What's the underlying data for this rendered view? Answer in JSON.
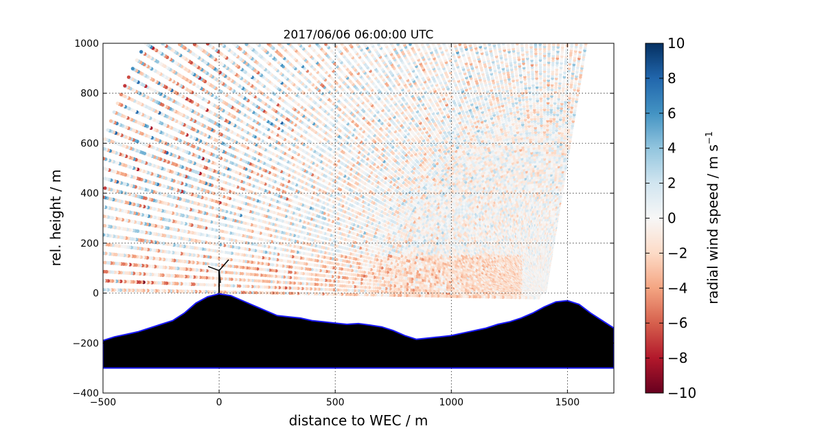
{
  "chart_data": {
    "type": "scatter",
    "title": "2017/06/06 06:00:00 UTC",
    "xlabel": "distance to WEC / m",
    "ylabel": "rel. height / m",
    "xlim": [
      -500,
      1700
    ],
    "ylim": [
      -400,
      1000
    ],
    "x_ticks": [
      -500,
      0,
      500,
      1000,
      1500
    ],
    "y_ticks": [
      -400,
      -200,
      0,
      200,
      400,
      600,
      800,
      1000
    ],
    "x_tick_labels": [
      "−500",
      "0",
      "500",
      "1000",
      "1500"
    ],
    "y_tick_labels": [
      "−400",
      "−200",
      "0",
      "200",
      "400",
      "600",
      "800",
      "1000"
    ],
    "grid": true,
    "colorbar": {
      "label": "radial wind speed / m s",
      "label_superscript": "−1",
      "colormap": "RdBu",
      "range": [
        -10,
        10
      ],
      "ticks": [
        -10,
        -8,
        -6,
        -4,
        -2,
        0,
        2,
        4,
        6,
        8,
        10
      ],
      "tick_labels": [
        "−10",
        "−8",
        "−6",
        "−4",
        "−2",
        "0",
        "2",
        "4",
        "6",
        "8",
        "10"
      ]
    },
    "lidar_scan": {
      "position": [
        1400,
        -20
      ],
      "azimuth_range_deg": [
        80,
        180
      ],
      "max_range_m": 2000
    },
    "wind_turbine": {
      "position": [
        0,
        0
      ],
      "hub_height": 90
    },
    "terrain_profile": {
      "x": [
        -500,
        -450,
        -400,
        -350,
        -300,
        -250,
        -200,
        -150,
        -100,
        -50,
        0,
        50,
        100,
        150,
        200,
        250,
        300,
        350,
        400,
        450,
        500,
        550,
        600,
        650,
        700,
        750,
        800,
        850,
        900,
        950,
        1000,
        1050,
        1100,
        1150,
        1200,
        1250,
        1300,
        1350,
        1400,
        1450,
        1500,
        1550,
        1600,
        1650,
        1700
      ],
      "y": [
        -190,
        -175,
        -165,
        -155,
        -140,
        -125,
        -110,
        -80,
        -40,
        -15,
        -3,
        -10,
        -30,
        -50,
        -70,
        -90,
        -95,
        -100,
        -110,
        -115,
        -120,
        -125,
        -122,
        -128,
        -135,
        -150,
        -170,
        -185,
        -180,
        -175,
        -170,
        -160,
        -150,
        -140,
        -125,
        -115,
        -100,
        -80,
        -55,
        -35,
        -30,
        -45,
        -80,
        -110,
        -140
      ],
      "base": -300
    }
  }
}
